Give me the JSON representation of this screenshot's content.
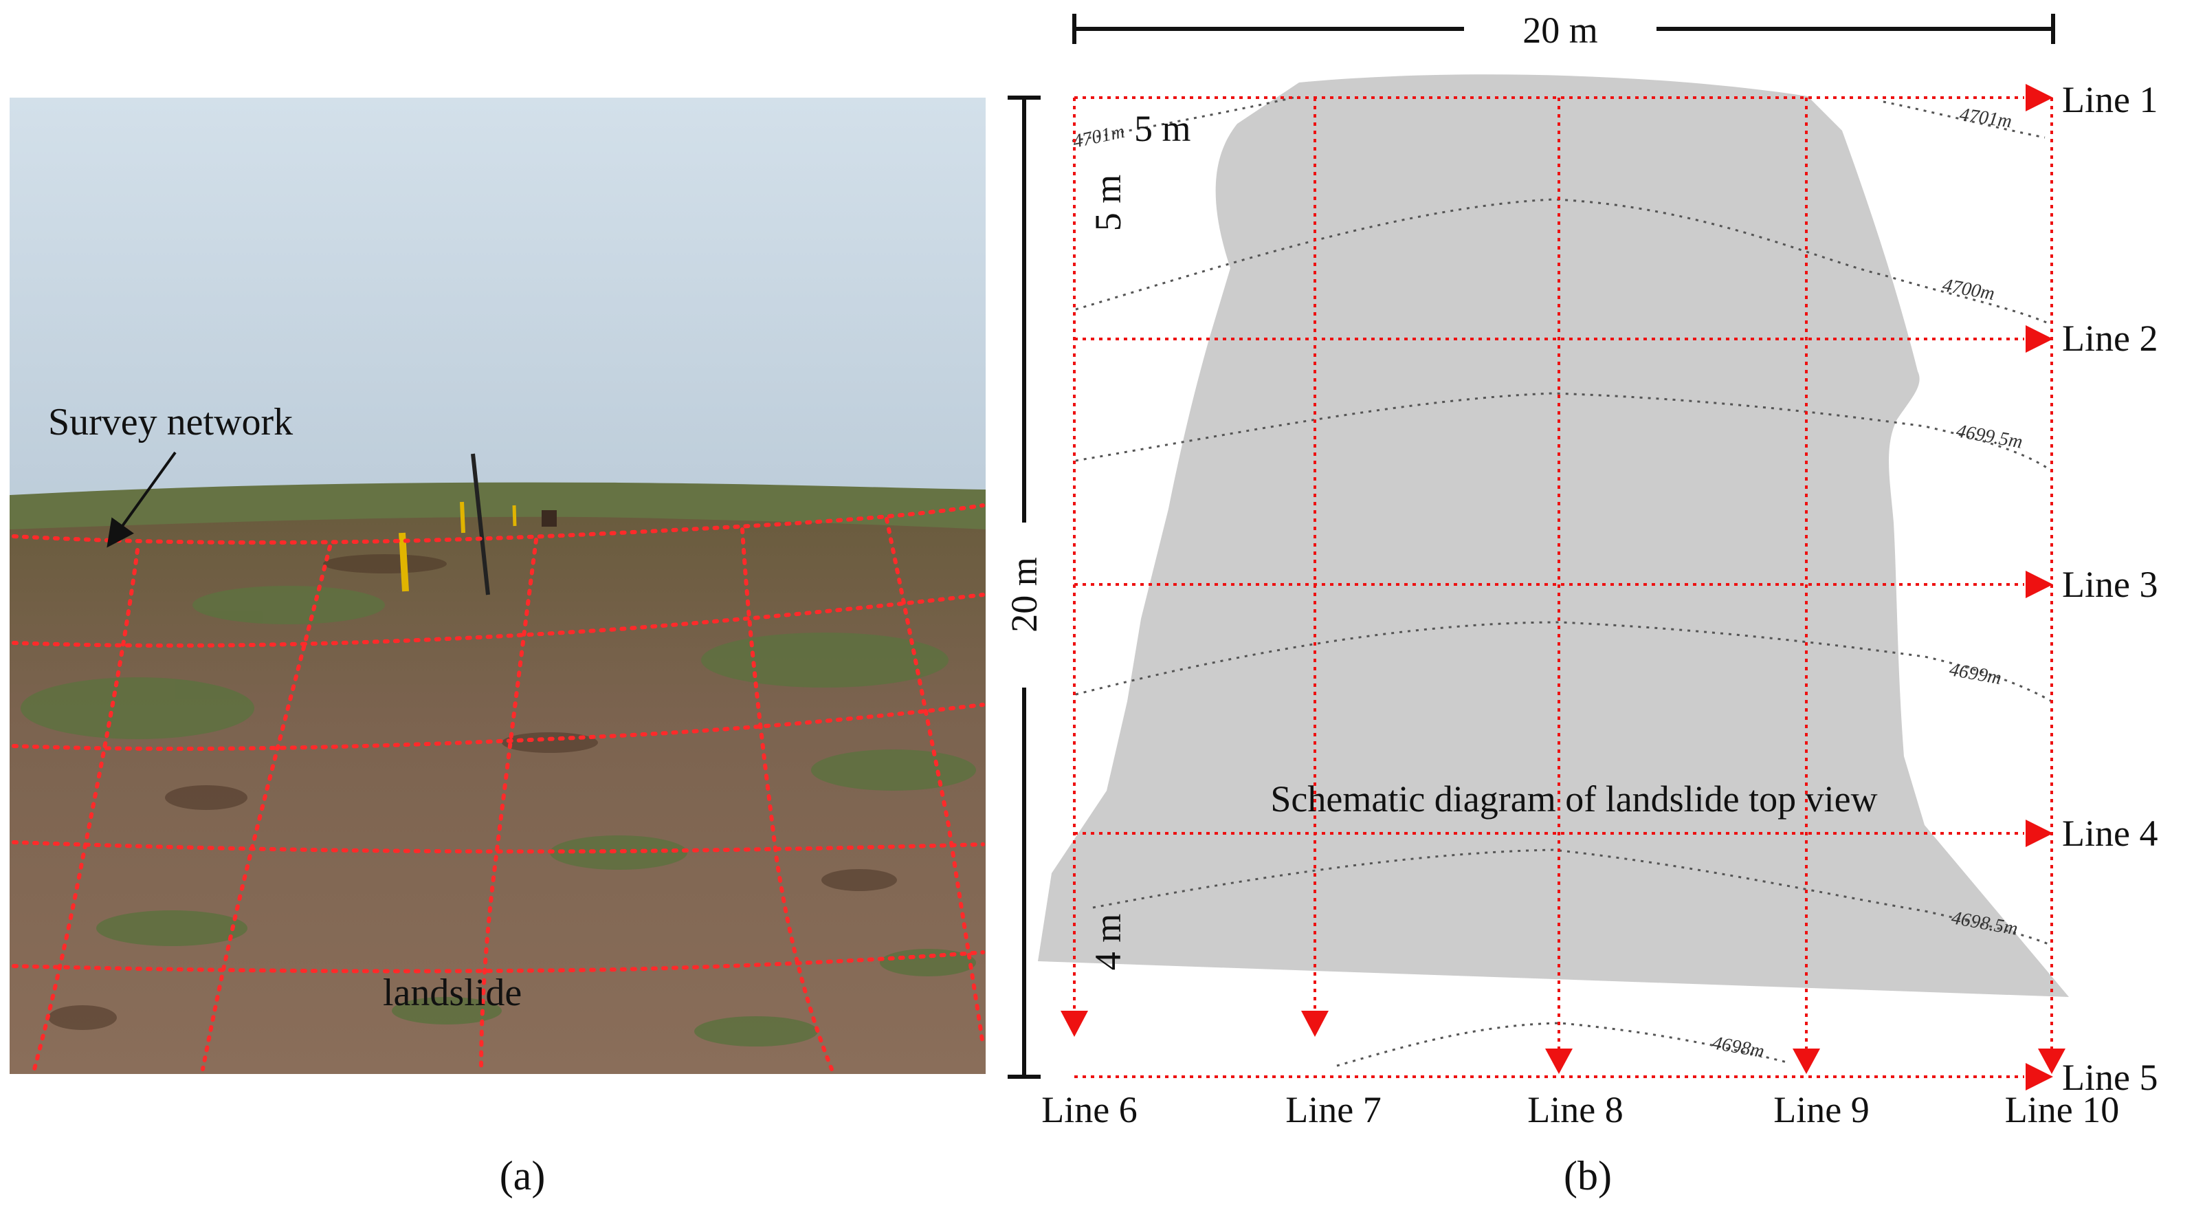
{
  "photo": {
    "panel_label": "(a)",
    "annotation": "Survey network",
    "landslide_label": "landslide"
  },
  "diagram": {
    "panel_label": "(b)",
    "title": "Schematic diagram of landslide top view",
    "width_label": "20 m",
    "height_label": "20 m",
    "spacing_h_label": "5 m",
    "spacing_v_label": "5 m",
    "bottom_spacing_label": "4 m",
    "horizontal_lines": [
      "Line 1",
      "Line 2",
      "Line 3",
      "Line 4",
      "Line 5"
    ],
    "vertical_lines": [
      "Line 6",
      "Line 7",
      "Line 8",
      "Line 9",
      "Line 10"
    ],
    "contours": [
      "4701m",
      "4701m",
      "4700m",
      "4699.5m",
      "4699m",
      "4698.5m",
      "4698m"
    ]
  },
  "colors": {
    "grid_red": "#ee1111",
    "landslide_gray": "#cccccc",
    "contour_gray": "#555555",
    "sky": "#b7c8d6",
    "ground": "#7d6250",
    "grass": "#6b7a45"
  }
}
